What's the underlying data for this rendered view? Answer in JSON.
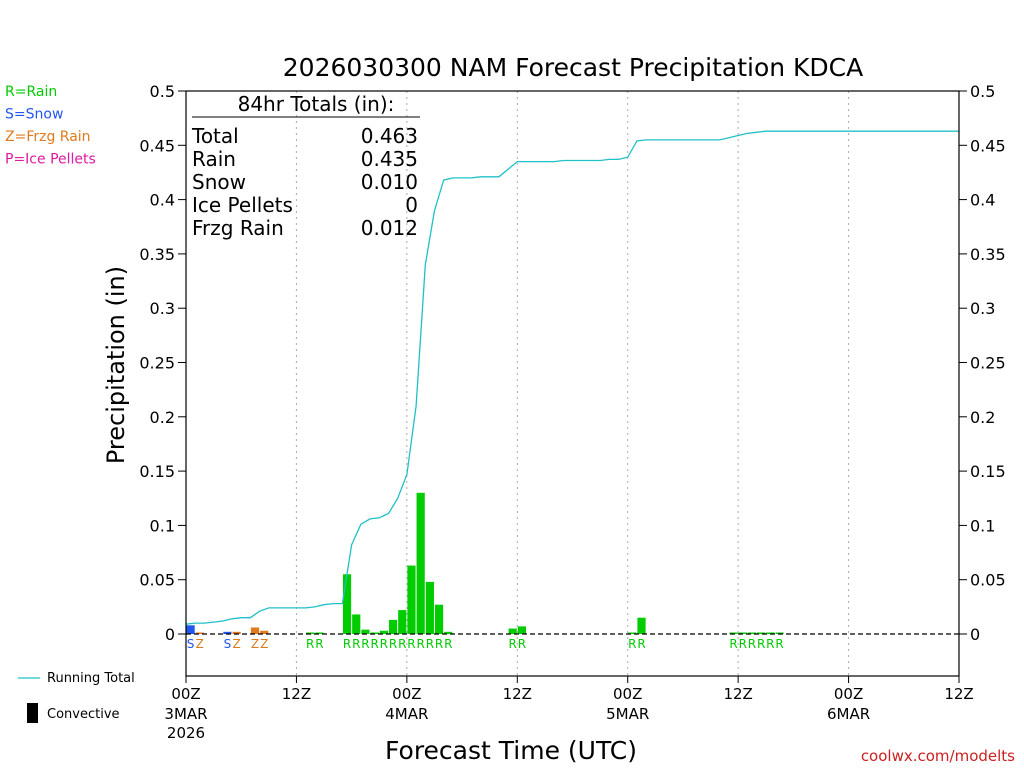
{
  "chart_data": {
    "type": "bar",
    "title": "2026030300 NAM Forecast Precipitation KDCA",
    "xlabel": "Forecast Time (UTC)",
    "ylabel": "Precipitation (in)",
    "xlim": [
      0,
      84
    ],
    "ylim": [
      0,
      0.5
    ],
    "grid": "vertical dotted at 12-hour ticks",
    "x_ticks": [
      {
        "hour": 0,
        "label": "00Z",
        "date": "3MAR",
        "year": "2026"
      },
      {
        "hour": 12,
        "label": "12Z",
        "date": "",
        "year": ""
      },
      {
        "hour": 24,
        "label": "00Z",
        "date": "4MAR",
        "year": ""
      },
      {
        "hour": 36,
        "label": "12Z",
        "date": "",
        "year": ""
      },
      {
        "hour": 48,
        "label": "00Z",
        "date": "5MAR",
        "year": ""
      },
      {
        "hour": 60,
        "label": "12Z",
        "date": "",
        "year": ""
      },
      {
        "hour": 72,
        "label": "00Z",
        "date": "6MAR",
        "year": ""
      },
      {
        "hour": 84,
        "label": "12Z",
        "date": "",
        "year": ""
      }
    ],
    "y_ticks": [
      "0",
      "0.05",
      "0.1",
      "0.15",
      "0.2",
      "0.25",
      "0.3",
      "0.35",
      "0.4",
      "0.45",
      "0.5"
    ],
    "y_tick_values": [
      0,
      0.05,
      0.1,
      0.15,
      0.2,
      0.25,
      0.3,
      0.35,
      0.4,
      0.45,
      0.5
    ],
    "bars": [
      {
        "hour": 1,
        "value": 0.008,
        "type": "S"
      },
      {
        "hour": 2,
        "value": 0.001,
        "type": "Z"
      },
      {
        "hour": 5,
        "value": 0.002,
        "type": "S"
      },
      {
        "hour": 6,
        "value": 0.002,
        "type": "Z"
      },
      {
        "hour": 8,
        "value": 0.006,
        "type": "Z"
      },
      {
        "hour": 9,
        "value": 0.003,
        "type": "Z"
      },
      {
        "hour": 14,
        "value": 0.001,
        "type": "R"
      },
      {
        "hour": 15,
        "value": 0.001,
        "type": "R"
      },
      {
        "hour": 18,
        "value": 0.055,
        "type": "R"
      },
      {
        "hour": 19,
        "value": 0.018,
        "type": "R"
      },
      {
        "hour": 20,
        "value": 0.004,
        "type": "R"
      },
      {
        "hour": 21,
        "value": 0.001,
        "type": "R"
      },
      {
        "hour": 22,
        "value": 0.003,
        "type": "R"
      },
      {
        "hour": 23,
        "value": 0.013,
        "type": "R"
      },
      {
        "hour": 24,
        "value": 0.022,
        "type": "R"
      },
      {
        "hour": 25,
        "value": 0.063,
        "type": "R"
      },
      {
        "hour": 26,
        "value": 0.13,
        "type": "R"
      },
      {
        "hour": 27,
        "value": 0.048,
        "type": "R"
      },
      {
        "hour": 28,
        "value": 0.027,
        "type": "R"
      },
      {
        "hour": 29,
        "value": 0.002,
        "type": "R"
      },
      {
        "hour": 36,
        "value": 0.005,
        "type": "R"
      },
      {
        "hour": 37,
        "value": 0.007,
        "type": "R"
      },
      {
        "hour": 49,
        "value": 0.001,
        "type": "R"
      },
      {
        "hour": 50,
        "value": 0.015,
        "type": "R"
      },
      {
        "hour": 60,
        "value": 0.001,
        "type": "R"
      },
      {
        "hour": 61,
        "value": 0.001,
        "type": "R"
      },
      {
        "hour": 62,
        "value": 0.001,
        "type": "R"
      },
      {
        "hour": 63,
        "value": 0.001,
        "type": "R"
      },
      {
        "hour": 64,
        "value": 0.001,
        "type": "R"
      },
      {
        "hour": 65,
        "value": 0.001,
        "type": "R"
      }
    ],
    "running_total": {
      "name": "Running Total",
      "x": [
        0,
        1,
        2,
        3,
        4,
        5,
        6,
        7,
        8,
        9,
        10,
        11,
        12,
        13,
        14,
        15,
        16,
        17,
        18,
        19,
        20,
        21,
        22,
        23,
        24,
        25,
        26,
        27,
        28,
        29,
        30,
        31,
        32,
        33,
        34,
        35,
        36,
        37,
        38,
        39,
        40,
        41,
        42,
        43,
        44,
        45,
        46,
        47,
        48,
        49,
        50,
        51,
        52,
        53,
        54,
        55,
        56,
        57,
        58,
        59,
        60,
        61,
        62,
        63,
        64,
        65,
        66,
        67,
        68,
        69,
        70,
        71,
        72,
        73,
        74,
        75,
        76,
        77,
        78,
        79,
        80,
        81,
        82,
        83,
        84
      ],
      "y": [
        0.009,
        0.01,
        0.01,
        0.011,
        0.012,
        0.014,
        0.015,
        0.015,
        0.021,
        0.024,
        0.024,
        0.024,
        0.024,
        0.024,
        0.025,
        0.027,
        0.028,
        0.028,
        0.082,
        0.101,
        0.106,
        0.107,
        0.111,
        0.125,
        0.147,
        0.21,
        0.34,
        0.39,
        0.418,
        0.42,
        0.42,
        0.42,
        0.421,
        0.421,
        0.421,
        0.428,
        0.435,
        0.435,
        0.435,
        0.435,
        0.435,
        0.436,
        0.436,
        0.436,
        0.436,
        0.436,
        0.437,
        0.437,
        0.439,
        0.454,
        0.455,
        0.455,
        0.455,
        0.455,
        0.455,
        0.455,
        0.455,
        0.455,
        0.455,
        0.457,
        0.459,
        0.461,
        0.462,
        0.463,
        0.463,
        0.463,
        0.463,
        0.463,
        0.463,
        0.463,
        0.463,
        0.463,
        0.463,
        0.463,
        0.463,
        0.463,
        0.463,
        0.463,
        0.463,
        0.463,
        0.463,
        0.463,
        0.463,
        0.463,
        0.463
      ]
    },
    "type_labels": [
      {
        "hour": 1,
        "text": "S",
        "type": "S"
      },
      {
        "hour": 2,
        "text": "Z",
        "type": "Z"
      },
      {
        "hour": 5,
        "text": "S",
        "type": "S"
      },
      {
        "hour": 6,
        "text": "Z",
        "type": "Z"
      },
      {
        "hour": 8,
        "text": "Z",
        "type": "Z"
      },
      {
        "hour": 9,
        "text": "Z",
        "type": "Z"
      },
      {
        "hour": 14,
        "text": "R",
        "type": "R"
      },
      {
        "hour": 15,
        "text": "R",
        "type": "R"
      },
      {
        "hour": 18,
        "text": "R",
        "type": "R"
      },
      {
        "hour": 19,
        "text": "R",
        "type": "R"
      },
      {
        "hour": 20,
        "text": "R",
        "type": "R"
      },
      {
        "hour": 21,
        "text": "R",
        "type": "R"
      },
      {
        "hour": 22,
        "text": "R",
        "type": "R"
      },
      {
        "hour": 23,
        "text": "R",
        "type": "R"
      },
      {
        "hour": 24,
        "text": "R",
        "type": "R"
      },
      {
        "hour": 25,
        "text": "R",
        "type": "R"
      },
      {
        "hour": 26,
        "text": "R",
        "type": "R"
      },
      {
        "hour": 27,
        "text": "R",
        "type": "R"
      },
      {
        "hour": 28,
        "text": "R",
        "type": "R"
      },
      {
        "hour": 29,
        "text": "R",
        "type": "R"
      },
      {
        "hour": 36,
        "text": "R",
        "type": "R"
      },
      {
        "hour": 37,
        "text": "R",
        "type": "R"
      },
      {
        "hour": 49,
        "text": "R",
        "type": "R"
      },
      {
        "hour": 50,
        "text": "R",
        "type": "R"
      },
      {
        "hour": 60,
        "text": "R",
        "type": "R"
      },
      {
        "hour": 61,
        "text": "R",
        "type": "R"
      },
      {
        "hour": 62,
        "text": "R",
        "type": "R"
      },
      {
        "hour": 63,
        "text": "R",
        "type": "R"
      },
      {
        "hour": 64,
        "text": "R",
        "type": "R"
      },
      {
        "hour": 65,
        "text": "R",
        "type": "R"
      }
    ],
    "totals_box": {
      "title": "84hr Totals (in):",
      "rows": [
        {
          "label": "Total",
          "value": "0.463"
        },
        {
          "label": "Rain",
          "value": "0.435"
        },
        {
          "label": "Snow",
          "value": "0.010"
        },
        {
          "label": "Ice Pellets",
          "value": "0"
        },
        {
          "label": "Frzg Rain",
          "value": "0.012"
        }
      ]
    },
    "type_legend": [
      {
        "text": "R=Rain",
        "type": "R"
      },
      {
        "text": "S=Snow",
        "type": "S"
      },
      {
        "text": "Z=Frzg Rain",
        "type": "Z"
      },
      {
        "text": "P=Ice Pellets",
        "type": "P"
      }
    ],
    "bottom_legend": {
      "running_total": "Running Total",
      "convective": "Convective"
    },
    "watermark": "coolwx.com/modelts",
    "colors": {
      "R": "#00cc00",
      "S": "#2255ee",
      "Z": "#e07a1e",
      "P": "#dd1aa0",
      "running_total": "#20c0c8",
      "grid": "#aaaaaa",
      "watermark": "#cc2020"
    }
  }
}
